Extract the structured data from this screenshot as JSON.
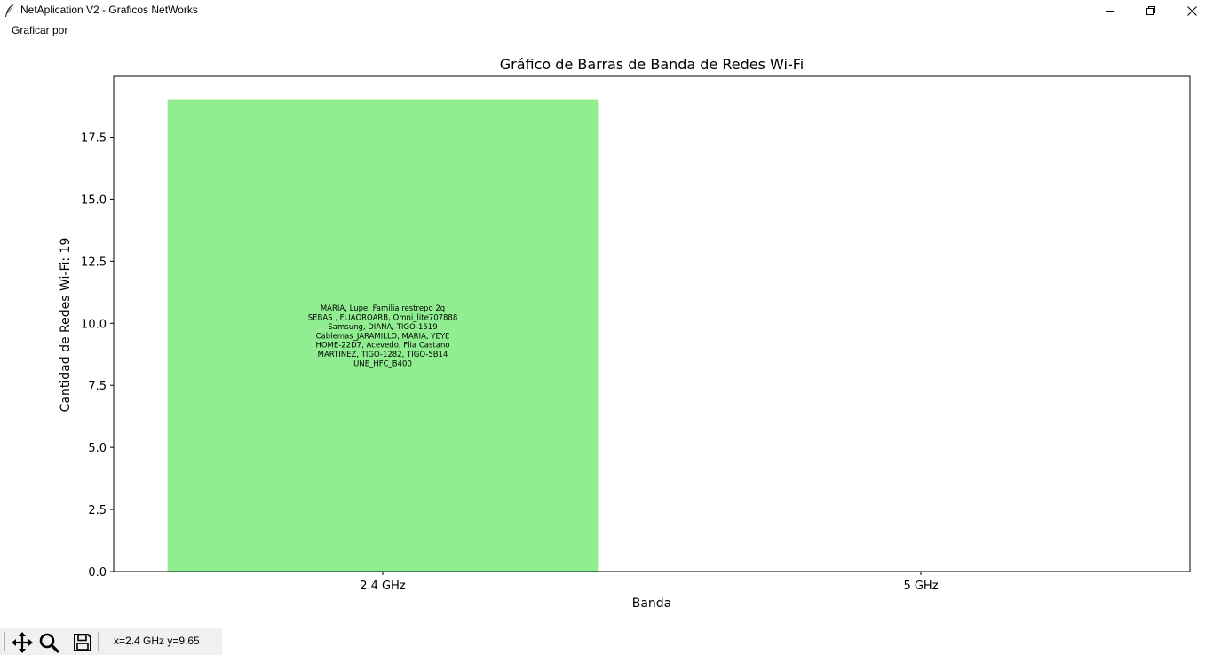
{
  "window": {
    "title": "NetAplication V2 - Graficos NetWorks",
    "icon": "feather-icon"
  },
  "menu": {
    "items": [
      {
        "label": "Graficar por"
      }
    ]
  },
  "chart_data": {
    "type": "bar",
    "title": "Gráfico de Barras de Banda de Redes Wi-Fi",
    "xlabel": "Banda",
    "ylabel": "Cantidad de Redes Wi-Fi: 19",
    "categories": [
      "2.4 GHz",
      "5 GHz"
    ],
    "values": [
      19,
      0
    ],
    "ylim": [
      0,
      19.95
    ],
    "yticks": [
      0.0,
      2.5,
      5.0,
      7.5,
      10.0,
      12.5,
      15.0,
      17.5
    ],
    "ytick_labels": [
      "0.0",
      "2.5",
      "5.0",
      "7.5",
      "10.0",
      "12.5",
      "15.0",
      "17.5"
    ],
    "bar_color": "#90ee90",
    "grid": false,
    "bar_annotations": [
      {
        "category": "2.4 GHz",
        "lines": [
          "MARIA, Lupe, Familia restrepo 2g",
          "SEBAS , FLIAOROARB, Omni_lite707888",
          "Samsung, DIANA, TIGO-1519",
          "Cablemas_JARAMILLO, MARIA, YEYE",
          "HOME-22D7, Acevedo, Flia Castano",
          "MARTINEZ, TIGO-1282, TIGO-5B14",
          "UNE_HFC_B400"
        ]
      }
    ]
  },
  "toolbar": {
    "buttons": [
      {
        "name": "pan",
        "icon": "move-arrows-icon"
      },
      {
        "name": "zoom",
        "icon": "magnifier-icon"
      },
      {
        "name": "save",
        "icon": "floppy-disk-icon"
      }
    ],
    "coordinates": "x=2.4 GHz y=9.65"
  }
}
